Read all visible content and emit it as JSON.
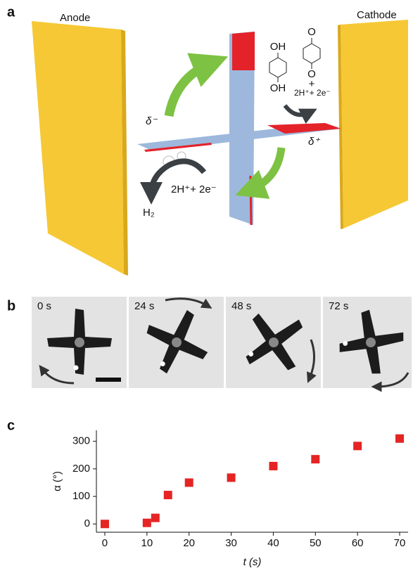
{
  "panel_a": {
    "label": "a",
    "anode": "Anode",
    "cathode": "Cathode",
    "delta_minus": "δ⁻",
    "delta_plus": "δ⁺",
    "reduction": "2H⁺+ 2e⁻",
    "product": "H₂",
    "hydroquinone_top": "OH",
    "hydroquinone_bottom": "OH",
    "quinone_top": "O",
    "quinone_bottom": "O",
    "plus": "+",
    "oxidation": "2H⁺+ 2e⁻"
  },
  "panel_b": {
    "label": "b",
    "frames": [
      "0 s",
      "24 s",
      "48 s",
      "72 s"
    ]
  },
  "chart_data": {
    "type": "scatter",
    "panel_label": "c",
    "xlabel": "t (s)",
    "ylabel": "α (°)",
    "x": [
      0,
      10,
      12,
      15,
      20,
      30,
      40,
      50,
      60,
      70
    ],
    "values": [
      0,
      4,
      22,
      105,
      150,
      168,
      210,
      235,
      283,
      310
    ],
    "color": "#e52424",
    "xlim": [
      -2,
      72
    ],
    "ylim": [
      -30,
      340
    ],
    "xticks": [
      0,
      10,
      20,
      30,
      40,
      50,
      60,
      70
    ],
    "yticks": [
      0,
      100,
      200,
      300
    ]
  }
}
